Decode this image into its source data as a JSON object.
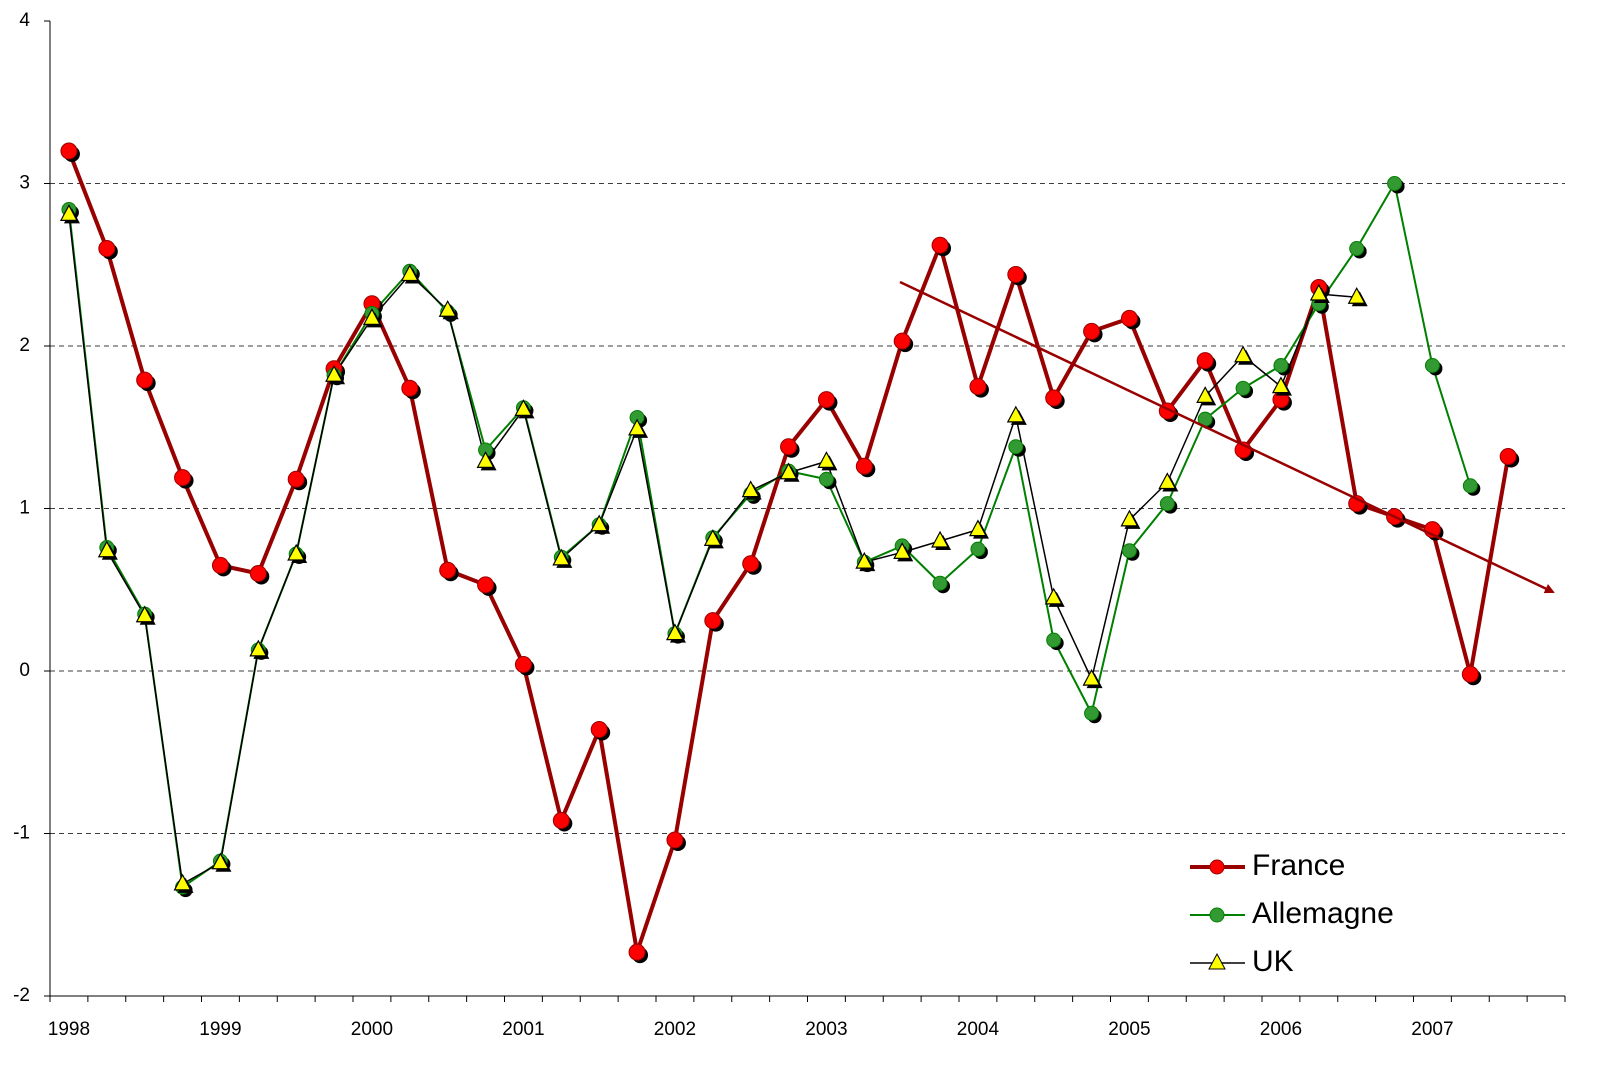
{
  "chart_data": {
    "type": "line",
    "categories": [
      "1998",
      null,
      null,
      null,
      "1999",
      null,
      null,
      null,
      "2000",
      null,
      null,
      null,
      "2001",
      null,
      null,
      null,
      "2002",
      null,
      null,
      null,
      "2003",
      null,
      null,
      null,
      "2004",
      null,
      null,
      null,
      "2005",
      null,
      null,
      null,
      "2006",
      null,
      null,
      null,
      "2007",
      null,
      null,
      null
    ],
    "series": [
      {
        "name": "France",
        "color": "#990000",
        "marker_color": "#ff0000",
        "marker": "circle",
        "line_width": 4,
        "values": [
          3.2,
          2.6,
          1.79,
          1.19,
          0.65,
          0.6,
          1.18,
          1.86,
          2.26,
          1.74,
          0.62,
          0.53,
          0.04,
          -0.92,
          -0.36,
          -1.73,
          -1.04,
          0.31,
          0.66,
          1.38,
          1.67,
          1.26,
          2.03,
          2.62,
          1.75,
          2.44,
          1.68,
          2.09,
          2.17,
          1.6,
          1.91,
          1.36,
          1.67,
          2.36,
          1.03,
          0.95,
          0.87,
          -0.02,
          1.32,
          null
        ]
      },
      {
        "name": "Allemagne",
        "color": "#008000",
        "marker_color": "#339933",
        "marker": "circle",
        "line_width": 2,
        "values": [
          2.84,
          0.76,
          0.35,
          -1.33,
          -1.17,
          0.13,
          0.72,
          1.82,
          2.2,
          2.46,
          2.21,
          1.36,
          1.62,
          0.7,
          0.9,
          1.56,
          0.23,
          0.82,
          1.09,
          1.23,
          1.18,
          0.67,
          0.77,
          0.54,
          0.75,
          1.38,
          0.19,
          -0.26,
          0.74,
          1.03,
          1.55,
          1.74,
          1.88,
          2.26,
          2.6,
          3.0,
          1.88,
          1.14,
          null,
          null
        ]
      },
      {
        "name": "UK",
        "color": "#000000",
        "marker_color": "#ffff00",
        "marker": "triangle",
        "line_width": 1.5,
        "values": [
          2.81,
          0.74,
          0.34,
          -1.31,
          -1.18,
          0.13,
          0.72,
          1.82,
          2.17,
          2.44,
          2.22,
          1.29,
          1.61,
          0.69,
          0.9,
          1.49,
          0.23,
          0.81,
          1.11,
          1.22,
          1.29,
          0.67,
          0.73,
          0.8,
          0.87,
          1.57,
          0.45,
          -0.05,
          0.93,
          1.16,
          1.69,
          1.94,
          1.75,
          2.32,
          2.3,
          null,
          null,
          null,
          null,
          null
        ]
      }
    ],
    "ylim": [
      -2,
      4
    ],
    "yticks": [
      -2,
      -1,
      0,
      1,
      2,
      3,
      4
    ],
    "grid": true,
    "legend": "lower right"
  }
}
